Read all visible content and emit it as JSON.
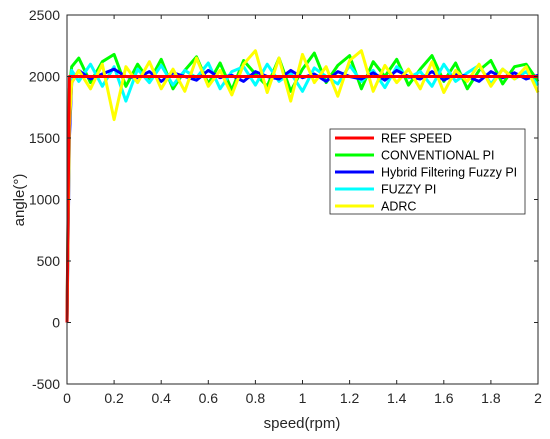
{
  "chart_data": {
    "type": "line",
    "title": "",
    "xlabel": "speed(rpm)",
    "ylabel": "angle(°)",
    "xlim": [
      0,
      2
    ],
    "ylim": [
      -500,
      2500
    ],
    "xticks": [
      "0",
      "0.2",
      "0.4",
      "0.6",
      "0.8",
      "1",
      "1.2",
      "1.4",
      "1.6",
      "1.8",
      "2"
    ],
    "yticks": [
      "-500",
      "0",
      "500",
      "1000",
      "1500",
      "2000",
      "2500"
    ],
    "legend_position": "right",
    "series": [
      {
        "name": "REF SPEED",
        "color": "#ff0000",
        "x": [
          0,
          0.01,
          2
        ],
        "y": [
          0,
          2000,
          2000
        ]
      },
      {
        "name": "CONVENTIONAL PI",
        "color": "#00ff00",
        "x": [
          0,
          0.01,
          0.02,
          0.05,
          0.1,
          0.15,
          0.2,
          0.25,
          0.3,
          0.35,
          0.4,
          0.45,
          0.5,
          0.55,
          0.6,
          0.65,
          0.7,
          0.75,
          0.8,
          0.85,
          0.9,
          0.95,
          1.0,
          1.05,
          1.1,
          1.15,
          1.2,
          1.25,
          1.3,
          1.35,
          1.4,
          1.45,
          1.5,
          1.55,
          1.6,
          1.65,
          1.7,
          1.75,
          1.8,
          1.85,
          1.9,
          1.95,
          2.0
        ],
        "y": [
          0,
          1900,
          2080,
          2150,
          1950,
          2120,
          2180,
          1920,
          2100,
          1960,
          2140,
          1900,
          2050,
          2160,
          1940,
          2110,
          1890,
          2130,
          2020,
          1920,
          2150,
          1880,
          2060,
          2190,
          1950,
          2090,
          2170,
          1900,
          2120,
          2000,
          2140,
          1930,
          2060,
          2170,
          1960,
          2110,
          1900,
          2050,
          2130,
          1940,
          2080,
          2100,
          1960
        ]
      },
      {
        "name": "Hybrid Filtering Fuzzy PI",
        "color": "#0000ff",
        "x": [
          0,
          0.01,
          0.02,
          0.05,
          0.1,
          0.15,
          0.2,
          0.25,
          0.3,
          0.35,
          0.4,
          0.45,
          0.5,
          0.55,
          0.6,
          0.65,
          0.7,
          0.75,
          0.8,
          0.85,
          0.9,
          0.95,
          1.0,
          1.05,
          1.1,
          1.15,
          1.2,
          1.25,
          1.3,
          1.35,
          1.4,
          1.45,
          1.5,
          1.55,
          1.6,
          1.65,
          1.7,
          1.75,
          1.8,
          1.85,
          1.9,
          1.95,
          2.0
        ],
        "y": [
          0,
          1500,
          1950,
          2050,
          1980,
          2020,
          2060,
          2000,
          1990,
          2040,
          1960,
          2030,
          2000,
          1970,
          2050,
          1990,
          2010,
          1960,
          2040,
          2000,
          1980,
          2050,
          1990,
          2020,
          1960,
          2040,
          2000,
          1980,
          2030,
          1970,
          2050,
          2000,
          1980,
          2040,
          1970,
          2020,
          2000,
          1960,
          2040,
          1990,
          2030,
          1980,
          2010
        ]
      },
      {
        "name": "FUZZY PI",
        "color": "#00ffff",
        "x": [
          0,
          0.01,
          0.02,
          0.05,
          0.1,
          0.15,
          0.2,
          0.25,
          0.3,
          0.35,
          0.4,
          0.45,
          0.5,
          0.55,
          0.6,
          0.65,
          0.7,
          0.75,
          0.8,
          0.85,
          0.9,
          0.95,
          1.0,
          1.05,
          1.1,
          1.15,
          1.2,
          1.25,
          1.3,
          1.35,
          1.4,
          1.45,
          1.5,
          1.55,
          1.6,
          1.65,
          1.7,
          1.75,
          1.8,
          1.85,
          1.9,
          1.95,
          2.0
        ],
        "y": [
          0,
          1800,
          2050,
          1960,
          2100,
          1920,
          2080,
          1800,
          2060,
          1950,
          2090,
          1930,
          2050,
          1990,
          2110,
          1900,
          2040,
          2080,
          1930,
          2100,
          1960,
          2030,
          1880,
          2070,
          2000,
          1940,
          2090,
          1960,
          2050,
          1910,
          2080,
          1990,
          2040,
          1920,
          2100,
          1960,
          2030,
          2090,
          1940,
          2060,
          1980,
          2040,
          1930
        ]
      },
      {
        "name": "ADRC",
        "color": "#ffff00",
        "x": [
          0,
          0.01,
          0.02,
          0.05,
          0.1,
          0.15,
          0.2,
          0.25,
          0.3,
          0.35,
          0.4,
          0.45,
          0.5,
          0.55,
          0.6,
          0.65,
          0.7,
          0.75,
          0.8,
          0.85,
          0.9,
          0.95,
          1.0,
          1.05,
          1.1,
          1.15,
          1.2,
          1.25,
          1.3,
          1.35,
          1.4,
          1.45,
          1.5,
          1.55,
          1.6,
          1.65,
          1.7,
          1.75,
          1.8,
          1.85,
          1.9,
          1.95,
          2.0
        ],
        "y": [
          0,
          1600,
          1950,
          2050,
          1900,
          2100,
          1650,
          2080,
          1950,
          2120,
          1900,
          2060,
          1880,
          2150,
          1920,
          2050,
          1850,
          2100,
          2210,
          1870,
          2150,
          1800,
          2180,
          1950,
          2080,
          1840,
          2130,
          2210,
          1880,
          2090,
          1950,
          2060,
          1900,
          2120,
          1870,
          2050,
          1960,
          2100,
          1920,
          2060,
          1980,
          2080,
          1870
        ]
      }
    ]
  }
}
